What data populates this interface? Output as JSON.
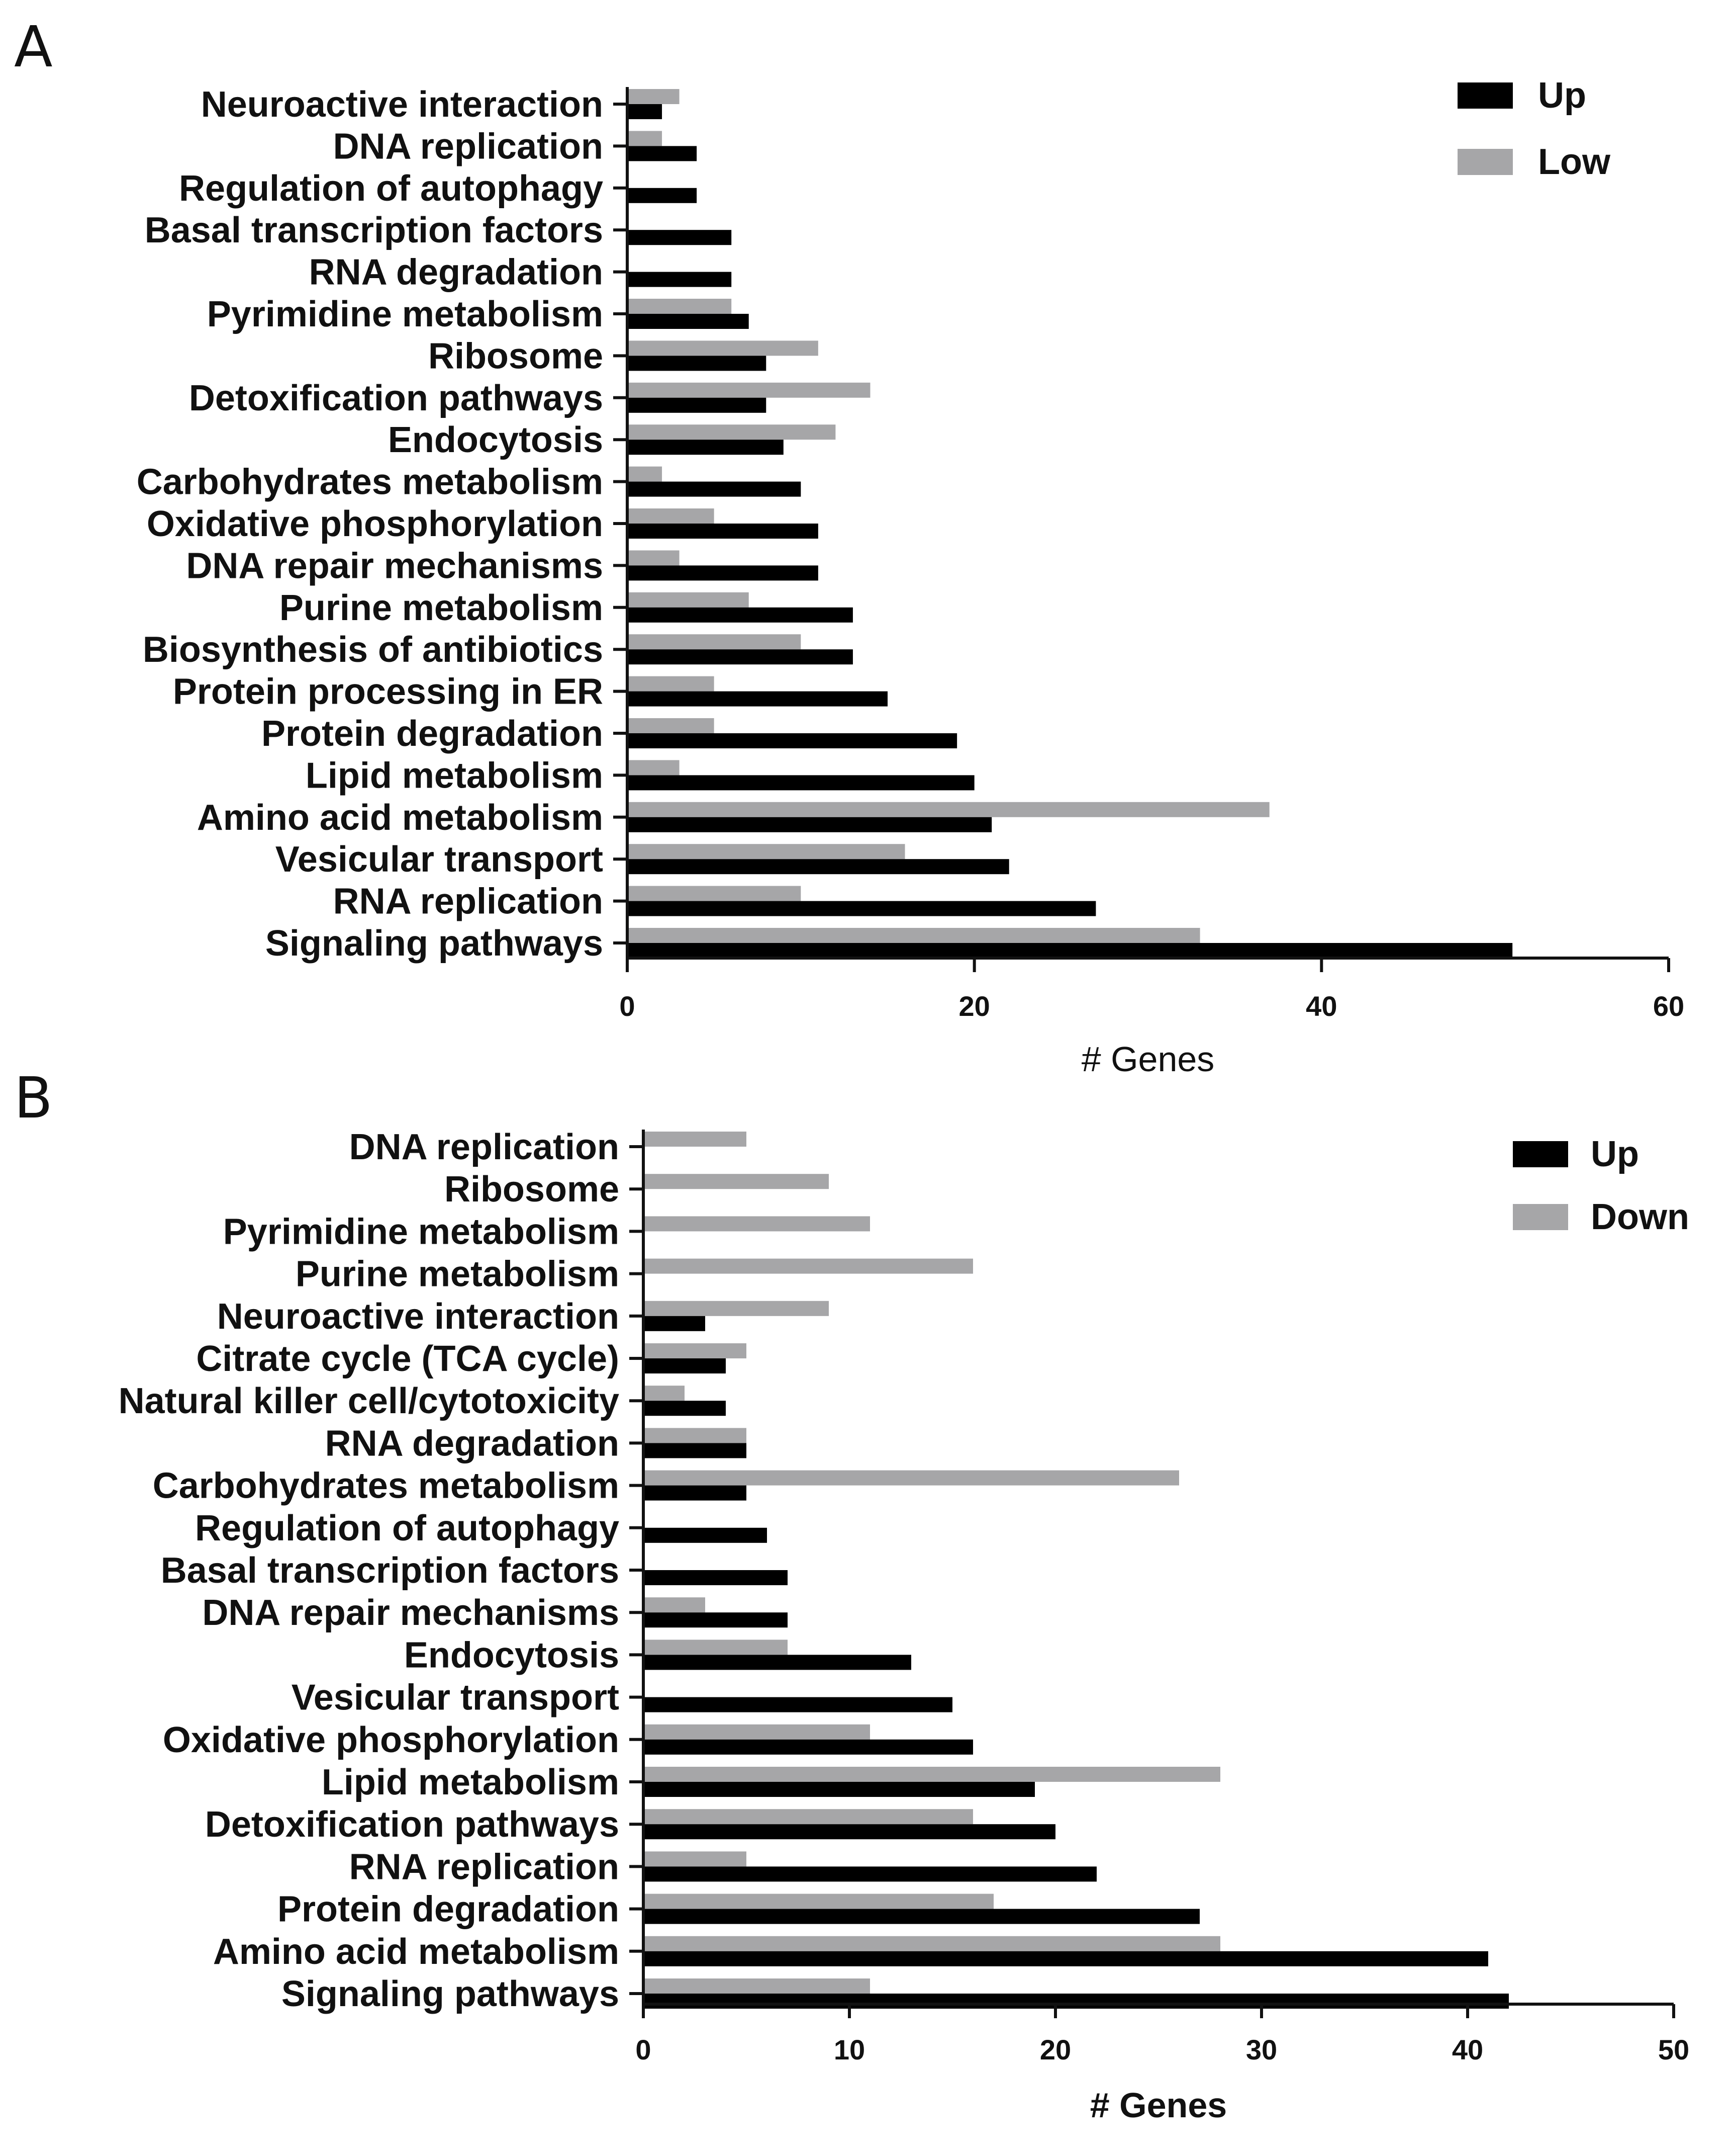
{
  "chart_data": [
    {
      "panel": "A",
      "type": "bar",
      "orientation": "horizontal",
      "title": "",
      "xlabel": "# Genes",
      "ylabel": "",
      "xlim": [
        0,
        60
      ],
      "xticks": [
        0,
        20,
        40,
        60
      ],
      "legend_position": "top-right",
      "categories": [
        "Neuroactive interaction",
        "DNA replication",
        "Regulation of autophagy",
        "Basal transcription factors",
        "RNA degradation",
        "Pyrimidine metabolism",
        "Ribosome",
        "Detoxification pathways",
        "Endocytosis",
        "Carbohydrates metabolism",
        "Oxidative phosphorylation",
        "DNA repair mechanisms",
        "Purine metabolism",
        "Biosynthesis of antibiotics",
        "Protein processing in ER",
        "Protein degradation",
        "Lipid metabolism",
        "Amino acid metabolism",
        "Vesicular transport",
        "RNA replication",
        "Signaling pathways"
      ],
      "series": [
        {
          "name": "Up",
          "color": "#000000",
          "values": [
            2,
            4,
            4,
            6,
            6,
            7,
            8,
            8,
            9,
            10,
            11,
            11,
            13,
            13,
            15,
            19,
            20,
            21,
            22,
            27,
            51
          ]
        },
        {
          "name": "Low",
          "color": "#a6a6a8",
          "values": [
            3,
            2,
            0,
            0,
            0,
            6,
            11,
            14,
            12,
            2,
            5,
            3,
            7,
            10,
            5,
            5,
            3,
            37,
            16,
            10,
            33
          ]
        }
      ]
    },
    {
      "panel": "B",
      "type": "bar",
      "orientation": "horizontal",
      "title": "",
      "xlabel": "# Genes",
      "ylabel": "",
      "xlim": [
        0,
        50
      ],
      "xticks": [
        0,
        10,
        20,
        30,
        40,
        50
      ],
      "legend_position": "top-right",
      "categories": [
        "DNA replication",
        "Ribosome",
        "Pyrimidine metabolism",
        "Purine metabolism",
        "Neuroactive interaction",
        "Citrate cycle (TCA cycle)",
        "Natural killer cell/cytotoxicity",
        "RNA degradation",
        "Carbohydrates metabolism",
        "Regulation of autophagy",
        "Basal transcription factors",
        "DNA repair mechanisms",
        "Endocytosis",
        "Vesicular transport",
        "Oxidative phosphorylation",
        "Lipid metabolism",
        "Detoxification pathways",
        "RNA replication",
        "Protein degradation",
        "Amino acid metabolism",
        "Signaling pathways"
      ],
      "series": [
        {
          "name": "Up",
          "color": "#000000",
          "values": [
            0,
            0,
            0,
            0,
            3,
            4,
            4,
            5,
            5,
            6,
            7,
            7,
            13,
            15,
            16,
            19,
            20,
            22,
            27,
            41,
            42
          ]
        },
        {
          "name": "Down",
          "color": "#a6a6a8",
          "values": [
            5,
            9,
            11,
            16,
            9,
            5,
            2,
            5,
            26,
            0,
            0,
            3,
            7,
            0,
            11,
            28,
            16,
            5,
            17,
            28,
            11
          ]
        }
      ]
    }
  ]
}
